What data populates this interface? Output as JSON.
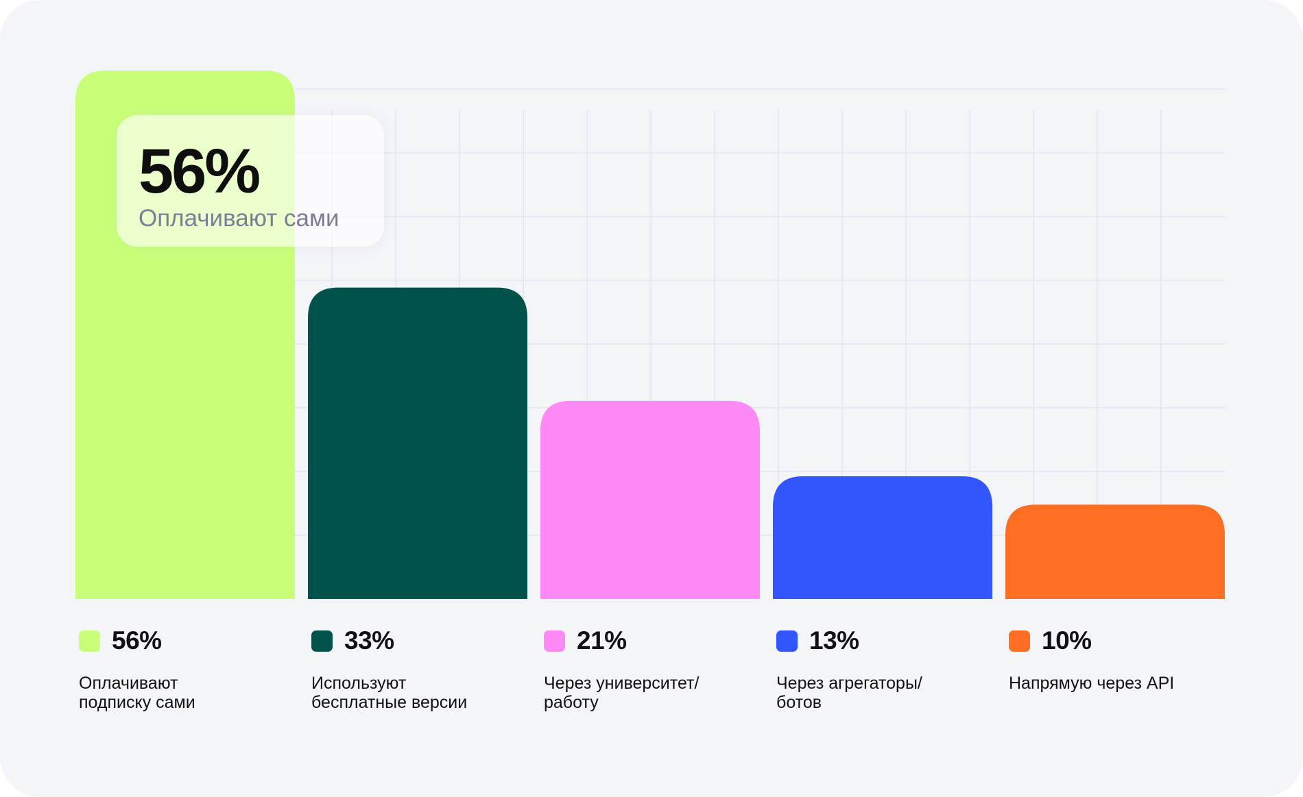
{
  "chart_data": {
    "type": "bar",
    "categories": [
      "Оплачивают подписку сами",
      "Используют бесплатные версии",
      "Через университет/ работу",
      "Через агрегаторы/ ботов",
      "Напрямую через API"
    ],
    "values": [
      56,
      33,
      21,
      13,
      10
    ],
    "value_labels": [
      "56%",
      "33%",
      "21%",
      "13%",
      "10%"
    ],
    "label_lines": [
      [
        "Оплачивают",
        "подписку сами"
      ],
      [
        "Используют",
        "бесплатные версии"
      ],
      [
        "Через университет/",
        "работу"
      ],
      [
        "Через агрегаторы/",
        "ботов"
      ],
      [
        "Напрямую через API"
      ]
    ],
    "colors": [
      "#c8ff78",
      "#02524c",
      "#fe8af5",
      "#3355fe",
      "#fd6e23"
    ],
    "ylim": [
      0,
      56
    ],
    "grid": true,
    "legend": "bottom",
    "unit": "%"
  },
  "callout": {
    "value": "56%",
    "label": "Оплачивают сами"
  },
  "legend": [
    {
      "value": "56%",
      "label": "Оплачивают\nподписку сами"
    },
    {
      "value": "33%",
      "label": "Используют\nбесплатные версии"
    },
    {
      "value": "21%",
      "label": "Через университет/\nработу"
    },
    {
      "value": "13%",
      "label": "Через агрегаторы/\nботов"
    },
    {
      "value": "10%",
      "label": "Напрямую через API"
    }
  ]
}
